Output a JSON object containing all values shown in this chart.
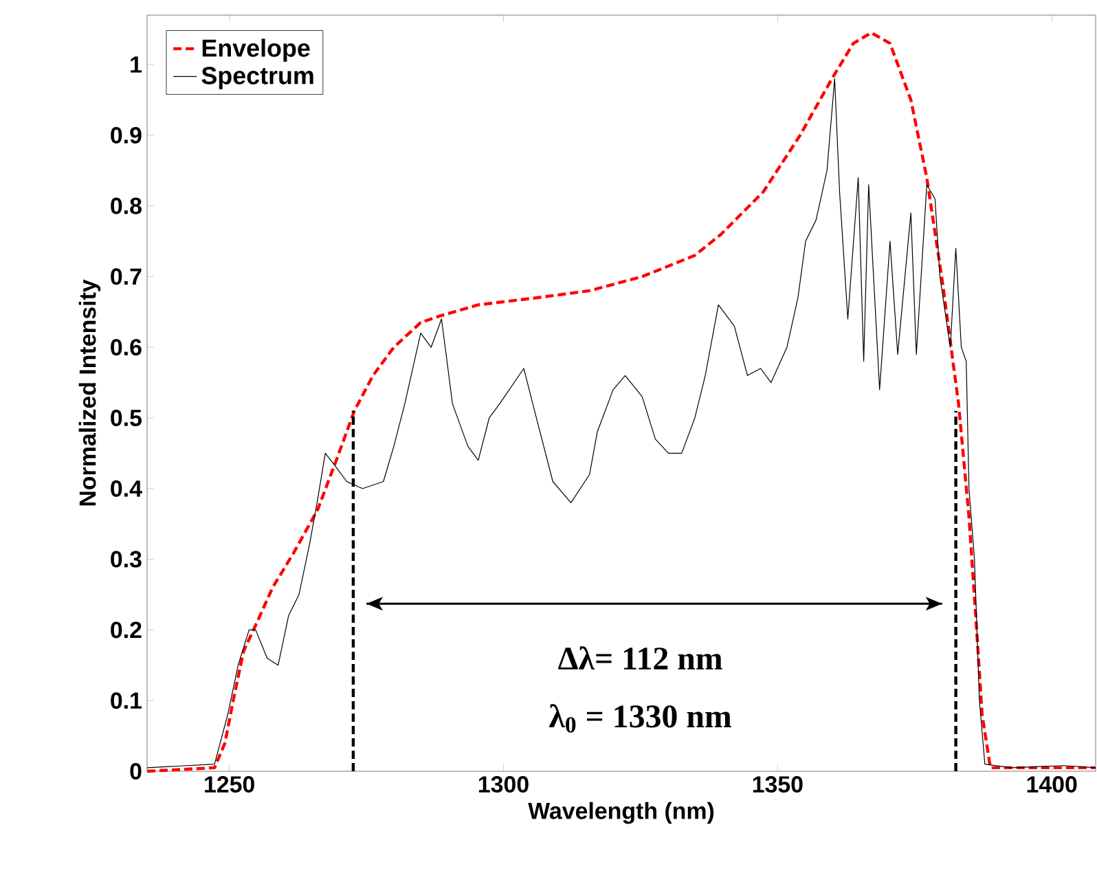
{
  "chart_data": {
    "type": "line",
    "xlabel": "Wavelength (nm)",
    "ylabel": "Normalized Intensity",
    "xlim": [
      1235,
      1408
    ],
    "ylim": [
      0,
      1.07
    ],
    "xticks": [
      1250,
      1300,
      1350,
      1400
    ],
    "yticks": [
      0,
      0.1,
      0.2,
      0.3,
      0.4,
      0.5,
      0.6,
      0.7,
      0.8,
      0.9,
      1
    ],
    "legend": "top left",
    "grid": false,
    "series": [
      {
        "name": "Envelope",
        "color": "#ff0000",
        "line_style": "dashed",
        "x": [
          1235,
          1247.3,
          1249.2,
          1250.7,
          1252.6,
          1255,
          1257.9,
          1261.8,
          1266.1,
          1269.5,
          1272.8,
          1276.2,
          1280,
          1284.9,
          1288.7,
          1295.4,
          1306,
          1315.7,
          1325.3,
          1334.9,
          1339.7,
          1347.4,
          1354.1,
          1359.9,
          1363.8,
          1367.1,
          1370.5,
          1374.3,
          1377.2,
          1380.1,
          1383,
          1384.9,
          1386.3,
          1387.3,
          1388.8,
          1392.6,
          1408
        ],
        "values": [
          0,
          0.005,
          0.04,
          0.1,
          0.17,
          0.21,
          0.26,
          0.31,
          0.37,
          0.44,
          0.51,
          0.56,
          0.6,
          0.635,
          0.645,
          0.66,
          0.67,
          0.68,
          0.7,
          0.73,
          0.76,
          0.82,
          0.9,
          0.98,
          1.03,
          1.045,
          1.03,
          0.95,
          0.84,
          0.69,
          0.52,
          0.36,
          0.2,
          0.08,
          0.005,
          0.005,
          0.005
        ]
      },
      {
        "name": "Spectrum",
        "color": "#000000",
        "line_style": "solid",
        "x": [
          1235,
          1247.3,
          1249.7,
          1251.6,
          1253.6,
          1254.8,
          1256.9,
          1258.9,
          1260.8,
          1262.7,
          1264.6,
          1266,
          1267.5,
          1269.5,
          1271.4,
          1274.3,
          1278.1,
          1280,
          1282,
          1284.9,
          1286.8,
          1288.7,
          1290.7,
          1293.5,
          1295.4,
          1297.4,
          1299.3,
          1303.7,
          1306,
          1309,
          1312.3,
          1315.7,
          1317.1,
          1320,
          1322.2,
          1325.3,
          1327.7,
          1330.1,
          1332.5,
          1334.9,
          1336.8,
          1339.2,
          1342.1,
          1344.5,
          1346.9,
          1348.8,
          1351.7,
          1353.7,
          1355.1,
          1357,
          1359,
          1360.4,
          1361.3,
          1362.8,
          1364.7,
          1365.7,
          1366.6,
          1368.6,
          1370.5,
          1371.9,
          1374.3,
          1375.3,
          1377.2,
          1378.7,
          1379.6,
          1381.5,
          1382.5,
          1383.5,
          1384.4,
          1384.9,
          1385.9,
          1386.8,
          1387.8,
          1392.6,
          1402.2,
          1408
        ],
        "values": [
          0.005,
          0.01,
          0.08,
          0.15,
          0.2,
          0.2,
          0.16,
          0.15,
          0.22,
          0.25,
          0.32,
          0.38,
          0.45,
          0.43,
          0.41,
          0.4,
          0.41,
          0.46,
          0.52,
          0.62,
          0.6,
          0.64,
          0.52,
          0.46,
          0.44,
          0.5,
          0.52,
          0.57,
          0.5,
          0.41,
          0.38,
          0.42,
          0.48,
          0.54,
          0.56,
          0.53,
          0.47,
          0.45,
          0.45,
          0.5,
          0.56,
          0.66,
          0.63,
          0.56,
          0.57,
          0.55,
          0.6,
          0.67,
          0.75,
          0.78,
          0.85,
          0.98,
          0.82,
          0.64,
          0.84,
          0.58,
          0.83,
          0.54,
          0.75,
          0.59,
          0.79,
          0.59,
          0.83,
          0.81,
          0.7,
          0.6,
          0.74,
          0.6,
          0.58,
          0.4,
          0.3,
          0.1,
          0.01,
          0.005,
          0.008,
          0.005
        ]
      },
      {
        "color": "#000000",
        "line_style": "dashed",
        "x": [
          1272.6,
          1272.6
        ],
        "values": [
          0,
          0.51
        ]
      },
      {
        "color": "#000000",
        "line_style": "dashed",
        "x": [
          1382.5,
          1382.5
        ],
        "values": [
          0,
          0.51
        ]
      },
      {
        "color": "#000000",
        "line_style": "solid",
        "x": [
          1275,
          1380
        ],
        "values": [
          0.237,
          0.237
        ]
      }
    ],
    "annotations": [
      "Δλ= 112 nm",
      "λ$_{0}$ = 1330 nm"
    ]
  }
}
